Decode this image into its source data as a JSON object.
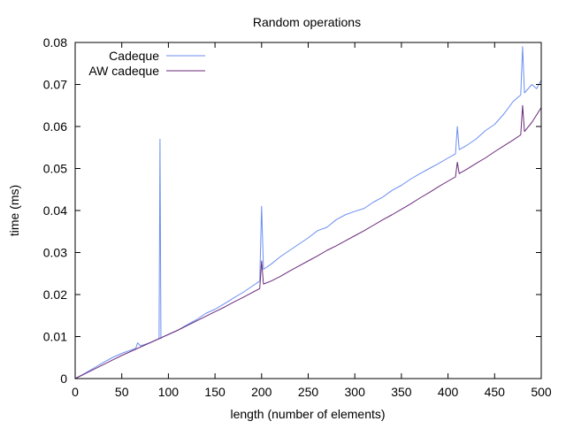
{
  "chart_data": {
    "type": "line",
    "title": "Random operations",
    "xlabel": "length (number of elements)",
    "ylabel": "time (ms)",
    "xlim": [
      0,
      500
    ],
    "ylim": [
      0,
      0.08
    ],
    "x_ticks": [
      "0",
      "50",
      "100",
      "150",
      "200",
      "250",
      "300",
      "350",
      "400",
      "450",
      "500"
    ],
    "y_ticks": [
      "0",
      "0.01",
      "0.02",
      "0.03",
      "0.04",
      "0.05",
      "0.06",
      "0.07",
      "0.08"
    ],
    "grid": false,
    "legend_position": "top-left",
    "series": [
      {
        "name": "Cadeque",
        "color": "#6b8ff0",
        "x": [
          0,
          10,
          20,
          30,
          40,
          50,
          60,
          65,
          67,
          70,
          80,
          90,
          91,
          92,
          93,
          100,
          110,
          120,
          130,
          140,
          150,
          160,
          170,
          180,
          190,
          198,
          200,
          202,
          210,
          220,
          230,
          240,
          250,
          260,
          270,
          280,
          290,
          300,
          310,
          320,
          330,
          340,
          350,
          360,
          370,
          380,
          390,
          400,
          408,
          410,
          412,
          420,
          430,
          440,
          450,
          460,
          470,
          478,
          480,
          482,
          490,
          495,
          500
        ],
        "y": [
          0,
          0.0012,
          0.0025,
          0.0038,
          0.005,
          0.006,
          0.0068,
          0.0072,
          0.0085,
          0.0078,
          0.0085,
          0.0095,
          0.057,
          0.0095,
          0.0098,
          0.0105,
          0.0115,
          0.0128,
          0.014,
          0.0155,
          0.0165,
          0.0178,
          0.0192,
          0.0205,
          0.022,
          0.0232,
          0.041,
          0.026,
          0.0272,
          0.029,
          0.0305,
          0.032,
          0.0335,
          0.0352,
          0.036,
          0.0378,
          0.039,
          0.0398,
          0.0405,
          0.042,
          0.0432,
          0.0448,
          0.046,
          0.0475,
          0.0488,
          0.05,
          0.0512,
          0.0525,
          0.0535,
          0.06,
          0.0545,
          0.0555,
          0.057,
          0.059,
          0.0605,
          0.063,
          0.066,
          0.0675,
          0.079,
          0.068,
          0.07,
          0.069,
          0.071
        ]
      },
      {
        "name": "AW cadeque",
        "color": "#6a2a7a",
        "x": [
          0,
          10,
          20,
          30,
          40,
          50,
          60,
          70,
          80,
          90,
          100,
          110,
          120,
          130,
          140,
          150,
          160,
          170,
          180,
          190,
          198,
          200,
          202,
          210,
          220,
          230,
          240,
          250,
          260,
          270,
          280,
          290,
          300,
          310,
          320,
          330,
          340,
          350,
          360,
          370,
          380,
          390,
          400,
          408,
          410,
          412,
          420,
          430,
          440,
          450,
          460,
          470,
          478,
          480,
          482,
          490,
          500
        ],
        "y": [
          0,
          0.0011,
          0.0022,
          0.0033,
          0.0044,
          0.0055,
          0.0065,
          0.0075,
          0.0085,
          0.0095,
          0.0105,
          0.0115,
          0.0126,
          0.0137,
          0.0148,
          0.0159,
          0.017,
          0.0182,
          0.0193,
          0.0205,
          0.0214,
          0.028,
          0.0225,
          0.0232,
          0.0243,
          0.0256,
          0.0268,
          0.028,
          0.0292,
          0.0305,
          0.0316,
          0.0328,
          0.034,
          0.0352,
          0.0365,
          0.0378,
          0.039,
          0.0403,
          0.0416,
          0.043,
          0.0443,
          0.0457,
          0.047,
          0.048,
          0.0515,
          0.0488,
          0.0498,
          0.0512,
          0.0525,
          0.054,
          0.0554,
          0.0568,
          0.058,
          0.065,
          0.0588,
          0.061,
          0.0645
        ]
      }
    ]
  }
}
